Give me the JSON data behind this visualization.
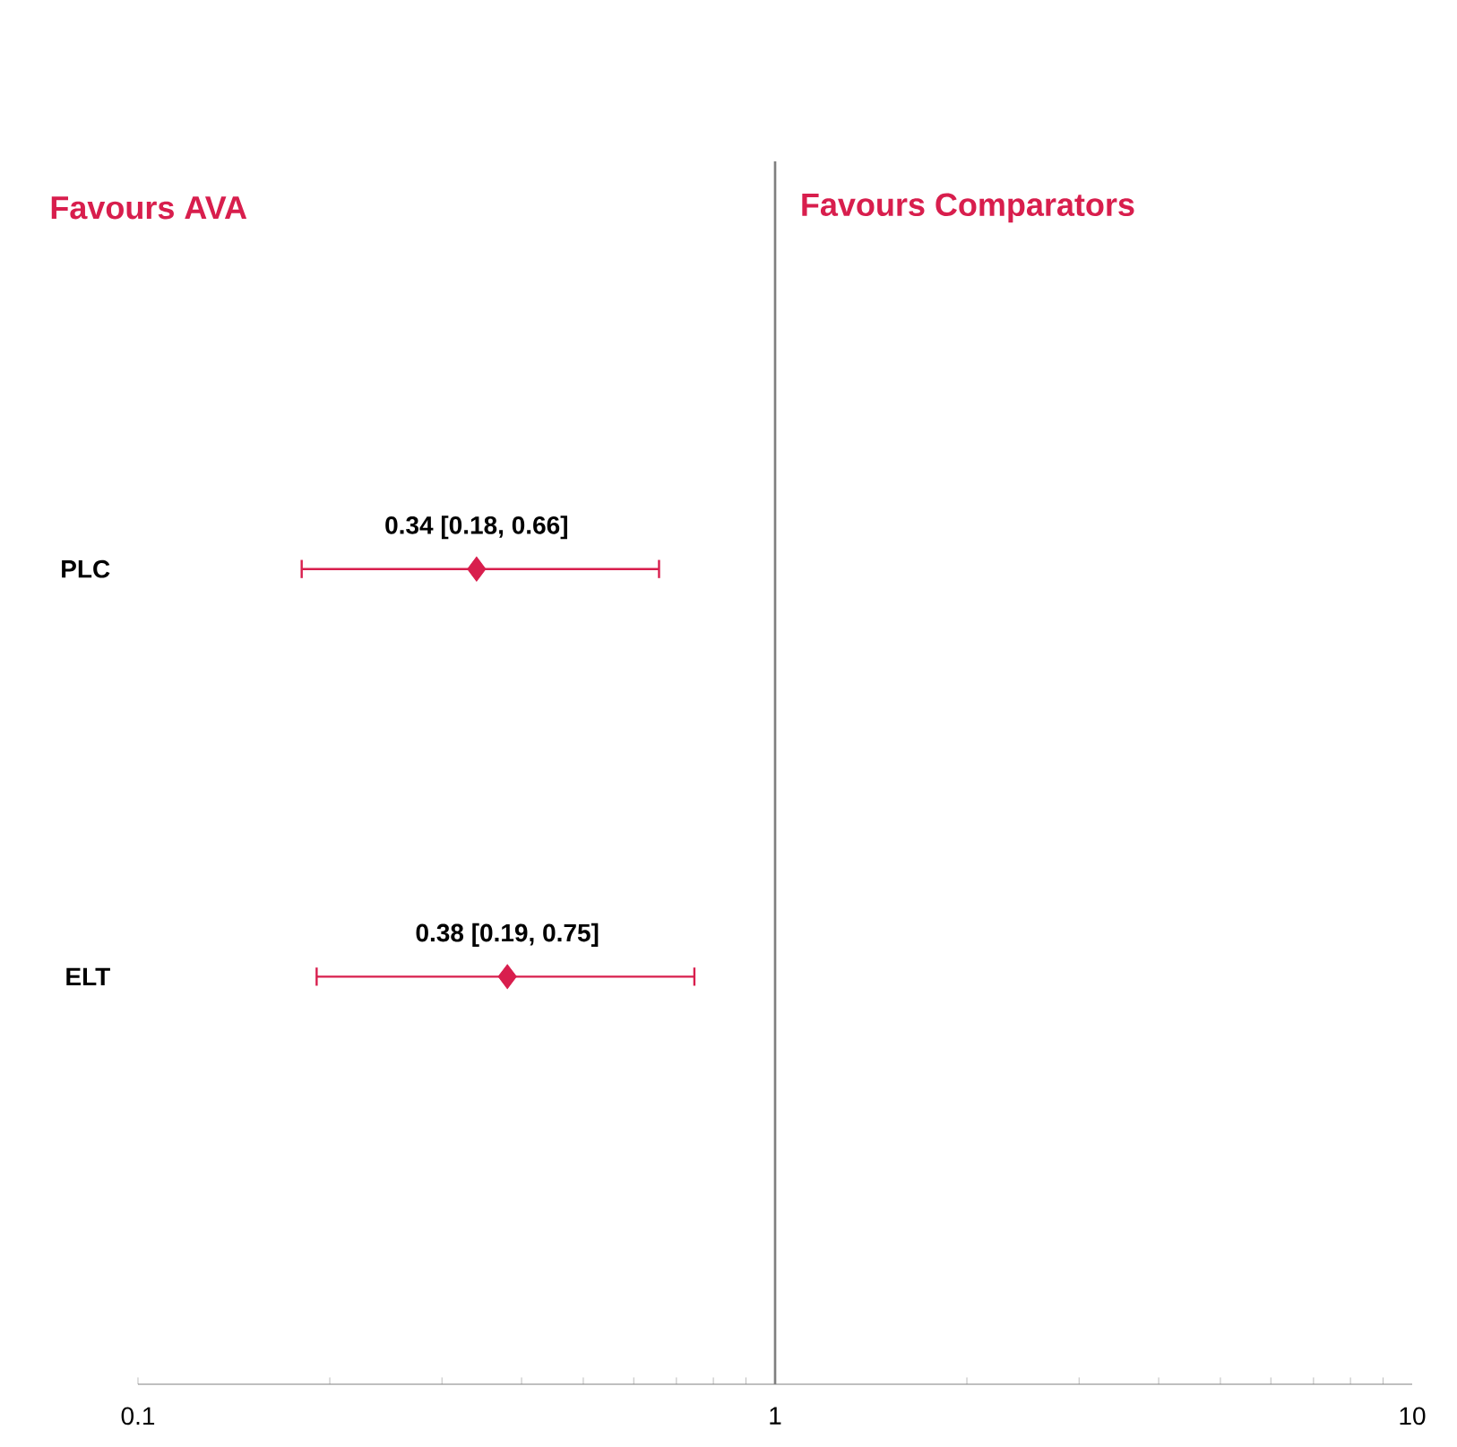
{
  "chart_data": {
    "type": "scatter",
    "orientation": "horizontal",
    "log": "x",
    "categories": [
      "PLC",
      "ELT"
    ],
    "values": [
      0.34,
      0.38
    ],
    "errors": [
      [
        0.18,
        0.66
      ],
      [
        0.19,
        0.75
      ]
    ],
    "value_labels": [
      "0.34 [0.18, 0.66]",
      "0.38 [0.19, 0.75]"
    ],
    "color": "#d81e4d",
    "marker": "diamond",
    "xlim": [
      0.1,
      10
    ],
    "xticks": [
      0.1,
      1,
      10
    ],
    "ref_lines": [
      {
        "axis": "x",
        "value": 1,
        "color": "#7f7f7f"
      }
    ],
    "annotations": [
      "Favours AVA",
      "Favours Comparators"
    ]
  }
}
